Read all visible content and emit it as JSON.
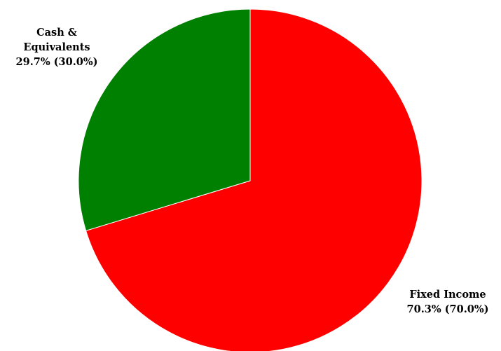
{
  "chart_data": {
    "type": "pie",
    "slices": [
      {
        "name": "Fixed Income",
        "value": 70.3,
        "target": 70.0,
        "label_lines": [
          "Fixed Income",
          "70.3% (70.0%)"
        ],
        "color": "#ff0000"
      },
      {
        "name": "Cash & Equivalents",
        "value": 29.7,
        "target": 30.0,
        "label_lines": [
          "Cash &",
          "Equivalents",
          "29.7% (30.0%)"
        ],
        "color": "#008000"
      }
    ],
    "start": "top",
    "direction": "clockwise",
    "legend": "none"
  }
}
